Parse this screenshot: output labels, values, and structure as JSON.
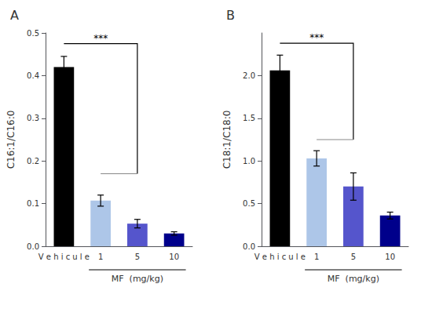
{
  "chart_data": [
    {
      "type": "bar",
      "title": "A",
      "ylabel": "C16:1/C16:0",
      "xlabel": "MF  (mg/kg)",
      "xlabel_span": [
        "1",
        "10"
      ],
      "categories": [
        "V e h i c u l e",
        "1",
        "5",
        "10"
      ],
      "values": [
        0.42,
        0.107,
        0.053,
        0.03
      ],
      "errors": [
        0.025,
        0.013,
        0.01,
        0.004
      ],
      "colors": [
        "#000000",
        "#adc6e8",
        "#5555cc",
        "#00008b"
      ],
      "ylim": [
        0,
        0.5
      ],
      "yticks": [
        {
          "value": 0.0,
          "label": "0.0"
        },
        0.1,
        0.2,
        0.3,
        0.4,
        0.5
      ],
      "grid": false,
      "significance": {
        "label": "***",
        "from": "V e h i c u l e",
        "to": "5",
        "y": 0.475,
        "bottom_y": 0.17,
        "bottom_from": "1",
        "bottom_to": "5"
      }
    },
    {
      "type": "bar",
      "title": "B",
      "ylabel": "C18:1/C18:0",
      "xlabel": "MF  (mg/kg)",
      "xlabel_span": [
        "1",
        "10"
      ],
      "categories": [
        "V e h i c u l e",
        "1",
        "5",
        "10"
      ],
      "values": [
        2.06,
        1.03,
        0.7,
        0.36
      ],
      "errors": [
        0.18,
        0.09,
        0.16,
        0.04
      ],
      "colors": [
        "#000000",
        "#adc6e8",
        "#5555cc",
        "#00008b"
      ],
      "ylim": [
        0,
        2.5
      ],
      "yticks": [
        {
          "value": 0.0,
          "label": "0.0"
        },
        0.5,
        {
          "value": 1.0,
          "label": "1.0"
        },
        1.5,
        {
          "value": 2.0,
          "label": "2.0"
        }
      ],
      "grid": false,
      "significance": {
        "label": "***",
        "from": "V e h i c u l e",
        "to": "5",
        "y": 2.38,
        "bottom_y": 1.25,
        "bottom_from": "1",
        "bottom_to": "5"
      }
    }
  ]
}
